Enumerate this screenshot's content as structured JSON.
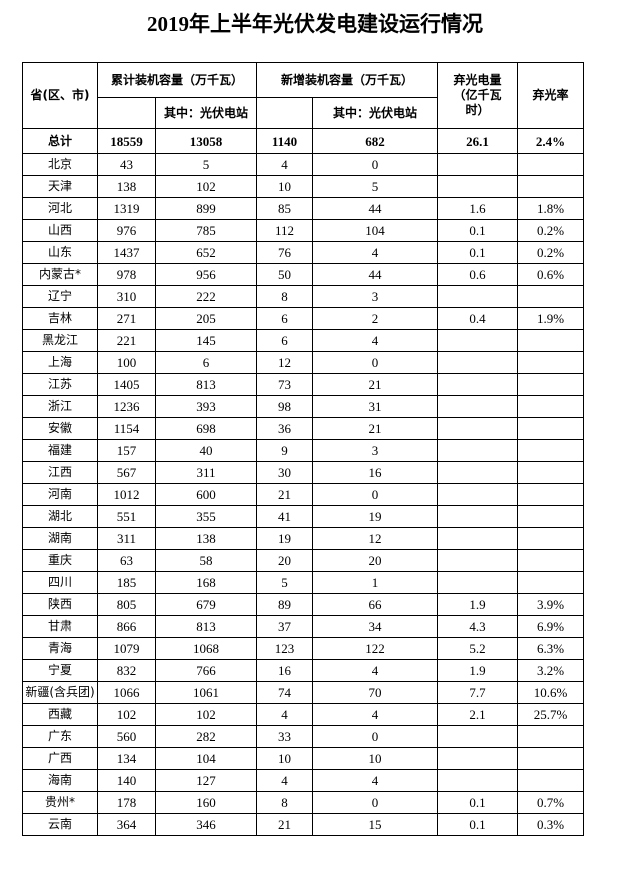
{
  "header": {
    "title": "2019年上半年光伏发电建设运行情况"
  },
  "table": {
    "headers": {
      "region": "省(区、市)",
      "cumulative": "累计装机容量（万千瓦）",
      "cumulative_sub": "其中：光伏电站",
      "new": "新增装机容量（万千瓦）",
      "new_sub": "其中：光伏电站",
      "curtailed": "弃光电量（亿千瓦时）",
      "rate": "弃光率"
    },
    "total": [
      "总计",
      18559,
      13058,
      1140,
      682,
      26.1,
      "2.4%"
    ],
    "rows": [
      [
        "北京",
        43,
        5,
        4,
        0,
        null,
        null
      ],
      [
        "天津",
        138,
        102,
        10,
        5,
        null,
        null
      ],
      [
        "河北",
        1319,
        899,
        85,
        44,
        1.6,
        "1.8%"
      ],
      [
        "山西",
        976,
        785,
        112,
        104,
        0.1,
        "0.2%"
      ],
      [
        "山东",
        1437,
        652,
        76,
        4,
        0.1,
        "0.2%"
      ],
      [
        "内蒙古*",
        978,
        956,
        50,
        44,
        0.6,
        "0.6%"
      ],
      [
        "辽宁",
        310,
        222,
        8,
        3,
        null,
        null
      ],
      [
        "吉林",
        271,
        205,
        6,
        2,
        0.4,
        "1.9%"
      ],
      [
        "黑龙江",
        221,
        145,
        6,
        4,
        null,
        null
      ],
      [
        "上海",
        100,
        6,
        12,
        0,
        null,
        null
      ],
      [
        "江苏",
        1405,
        813,
        73,
        21,
        null,
        null
      ],
      [
        "浙江",
        1236,
        393,
        98,
        31,
        null,
        null
      ],
      [
        "安徽",
        1154,
        698,
        36,
        21,
        null,
        null
      ],
      [
        "福建",
        157,
        40,
        9,
        3,
        null,
        null
      ],
      [
        "江西",
        567,
        311,
        30,
        16,
        null,
        null
      ],
      [
        "河南",
        1012,
        600,
        21,
        0,
        null,
        null
      ],
      [
        "湖北",
        551,
        355,
        41,
        19,
        null,
        null
      ],
      [
        "湖南",
        311,
        138,
        19,
        12,
        null,
        null
      ],
      [
        "重庆",
        63,
        58,
        20,
        20,
        null,
        null
      ],
      [
        "四川",
        185,
        168,
        5,
        1,
        null,
        null
      ],
      [
        "陕西",
        805,
        679,
        89,
        66,
        1.9,
        "3.9%"
      ],
      [
        "甘肃",
        866,
        813,
        37,
        34,
        4.3,
        "6.9%"
      ],
      [
        "青海",
        1079,
        1068,
        123,
        122,
        5.2,
        "6.3%"
      ],
      [
        "宁夏",
        832,
        766,
        16,
        4,
        1.9,
        "3.2%"
      ],
      [
        "新疆(含兵团)",
        1066,
        1061,
        74,
        70,
        7.7,
        "10.6%"
      ],
      [
        "西藏",
        102,
        102,
        4,
        4,
        2.1,
        "25.7%"
      ],
      [
        "广东",
        560,
        282,
        33,
        0,
        null,
        null
      ],
      [
        "广西",
        134,
        104,
        10,
        10,
        null,
        null
      ],
      [
        "海南",
        140,
        127,
        4,
        4,
        null,
        null
      ],
      [
        "贵州*",
        178,
        160,
        8,
        0,
        0.1,
        "0.7%"
      ],
      [
        "云南",
        364,
        346,
        21,
        15,
        0.1,
        "0.3%"
      ]
    ]
  }
}
